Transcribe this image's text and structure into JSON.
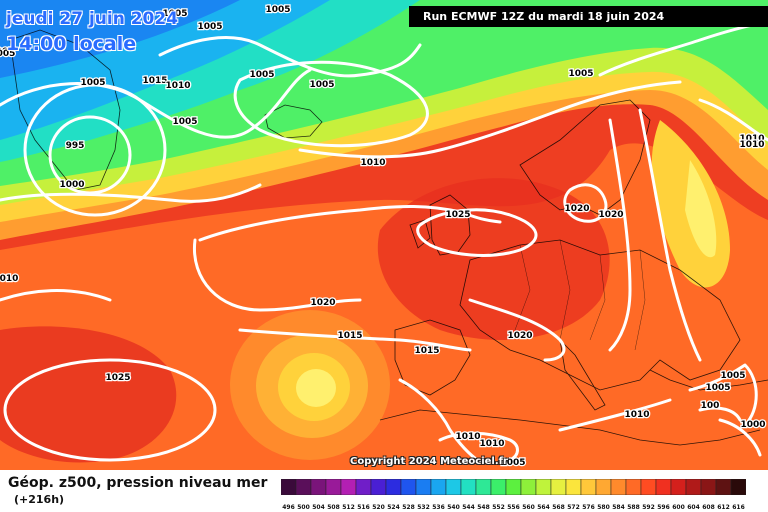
{
  "header": {
    "date": "jeudi 27 juin 2024",
    "time": "14:00 locale",
    "run": "Run ECMWF 12Z du mardi 18 juin 2024"
  },
  "copyright": "Copyright 2024 Meteociel.fr",
  "legend": {
    "title": "Géop. z500, pression niveau mer",
    "subtitle": "(+216h)",
    "scale_values": [
      "496",
      "500",
      "504",
      "508",
      "512",
      "516",
      "520",
      "524",
      "528",
      "532",
      "536",
      "540",
      "544",
      "548",
      "552",
      "556",
      "560",
      "564",
      "568",
      "572",
      "576",
      "580",
      "584",
      "588",
      "592",
      "596",
      "600",
      "604",
      "608",
      "612",
      "616"
    ],
    "scale_colors": [
      "#3a0a3a",
      "#5a0f5a",
      "#7a147a",
      "#991a99",
      "#b31fb3",
      "#701ec8",
      "#4a1fd4",
      "#2c2ce0",
      "#1f55ee",
      "#1a7df2",
      "#1aa6f0",
      "#1dc8e6",
      "#22e0c2",
      "#2ee896",
      "#3bef6a",
      "#5cf03f",
      "#8ef03a",
      "#bff33b",
      "#e6f040",
      "#fbe53c",
      "#ffc83a",
      "#ffa832",
      "#ff8a2c",
      "#ff6a26",
      "#ff4c22",
      "#f03020",
      "#d4201c",
      "#b01a19",
      "#8a1616",
      "#5e1212",
      "#2a0a0a"
    ]
  },
  "isobar_labels": [
    "1005",
    "1005",
    "1005",
    "1005",
    "005",
    "1005",
    "1015",
    "1010",
    "1005",
    "1005",
    "995",
    "1000",
    "1005",
    "1010",
    "1025",
    "1020",
    "1020",
    "1010",
    "1010",
    "010",
    "1020",
    "1015",
    "1020",
    "1015",
    "1025",
    "1005",
    "1005",
    "1005",
    "100",
    "1010",
    "1000",
    "1010",
    "1010",
    "1005"
  ],
  "map": {
    "region": "North Atlantic and Europe",
    "field_colors": {
      "low": "#1fb4f5",
      "mid": "#3bef6a",
      "high": "#ff6a26",
      "peak": "#e9361f"
    }
  }
}
